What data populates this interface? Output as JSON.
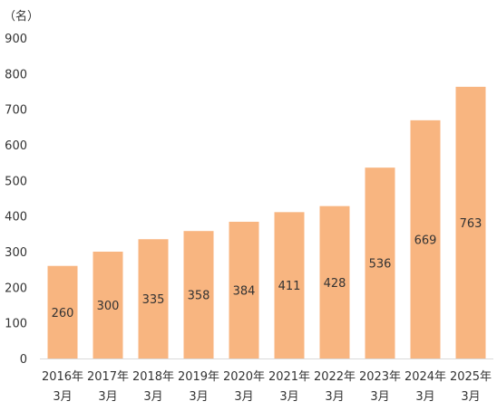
{
  "chart_data": {
    "type": "bar",
    "unit_label": "（名）",
    "categories": [
      [
        "2016年",
        "3月"
      ],
      [
        "2017年",
        "3月"
      ],
      [
        "2018年",
        "3月"
      ],
      [
        "2019年",
        "3月"
      ],
      [
        "2020年",
        "3月"
      ],
      [
        "2021年",
        "3月"
      ],
      [
        "2022年",
        "3月"
      ],
      [
        "2023年",
        "3月"
      ],
      [
        "2024年",
        "3月"
      ],
      [
        "2025年",
        "3月"
      ]
    ],
    "values": [
      260,
      300,
      335,
      358,
      384,
      411,
      428,
      536,
      669,
      763
    ],
    "ylim": [
      0,
      900
    ],
    "yticks": [
      0,
      100,
      200,
      300,
      400,
      500,
      600,
      700,
      800,
      900
    ],
    "grid": false,
    "legend": "none",
    "bar_color": "#F8B580",
    "axis_color": "#d9d9d9",
    "label_color": "#333333"
  }
}
